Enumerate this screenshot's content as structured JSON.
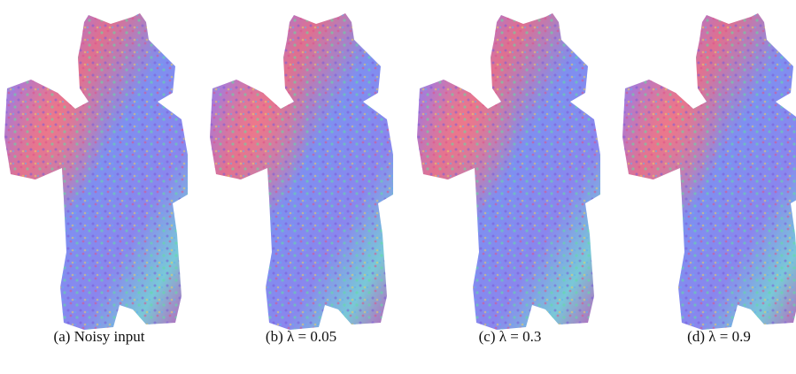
{
  "captions": [
    "(a) Noisy input",
    "(b) λ = 0.05",
    "(c) λ = 0.3",
    "(d) λ = 0.9"
  ]
}
